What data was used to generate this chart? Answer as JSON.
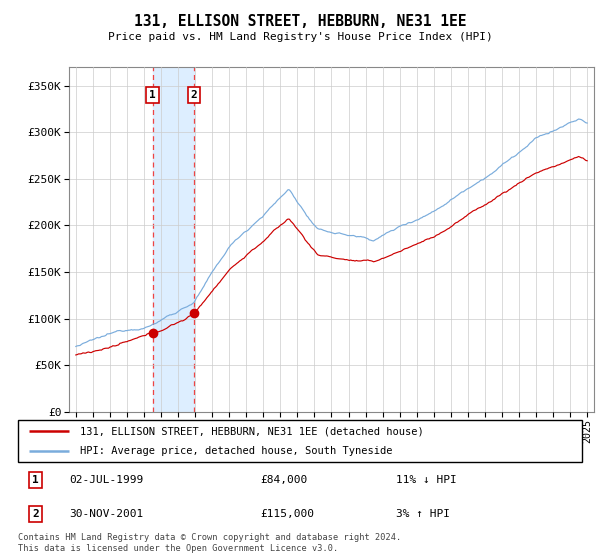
{
  "title": "131, ELLISON STREET, HEBBURN, NE31 1EE",
  "subtitle": "Price paid vs. HM Land Registry's House Price Index (HPI)",
  "legend_line1": "131, ELLISON STREET, HEBBURN, NE31 1EE (detached house)",
  "legend_line2": "HPI: Average price, detached house, South Tyneside",
  "sale1_date": "02-JUL-1999",
  "sale1_price": 84000,
  "sale1_label": "11% ↓ HPI",
  "sale1_year": 1999.5,
  "sale2_date": "30-NOV-2001",
  "sale2_price": 115000,
  "sale2_label": "3% ↑ HPI",
  "sale2_year": 2001.92,
  "hpi_color": "#7aacdc",
  "property_color": "#cc0000",
  "marker_color": "#cc0000",
  "shade_color": "#ddeeff",
  "vline_color": "#ee4444",
  "footer": "Contains HM Land Registry data © Crown copyright and database right 2024.\nThis data is licensed under the Open Government Licence v3.0.",
  "ylabel_values": [
    "£0",
    "£50K",
    "£100K",
    "£150K",
    "£200K",
    "£250K",
    "£300K",
    "£350K"
  ],
  "ylim": [
    0,
    370000
  ],
  "xlim_start": 1994.6,
  "xlim_end": 2025.4
}
